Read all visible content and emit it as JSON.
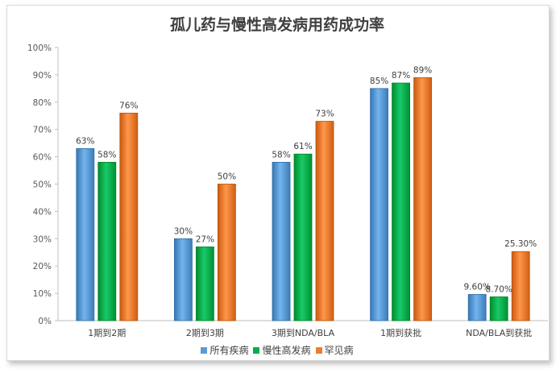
{
  "chart_data": {
    "type": "bar",
    "title": "孤儿药与慢性高发病用药成功率",
    "categories": [
      "1期到2期",
      "2期到3期",
      "3期到NDA/BLA",
      "1期到获批",
      "NDA/BLA到获批"
    ],
    "series": [
      {
        "name": "所有疾病",
        "color": "#5b9bd5",
        "values": [
          63,
          30,
          58,
          85,
          9.6
        ],
        "labels": [
          "63%",
          "30%",
          "58%",
          "85%",
          "9.60%"
        ]
      },
      {
        "name": "慢性高发病",
        "color": "#00b050",
        "values": [
          58,
          27,
          61,
          87,
          8.7
        ],
        "labels": [
          "58%",
          "27%",
          "61%",
          "87%",
          "8.70%"
        ]
      },
      {
        "name": "罕见病",
        "color": "#ed7d31",
        "values": [
          76,
          50,
          73,
          89,
          25.3
        ],
        "labels": [
          "76%",
          "50%",
          "73%",
          "89%",
          "25.30%"
        ]
      }
    ],
    "ylim": [
      0,
      100
    ],
    "ytick_labels": [
      "0%",
      "10%",
      "20%",
      "30%",
      "40%",
      "50%",
      "60%",
      "70%",
      "80%",
      "90%",
      "100%"
    ],
    "xlabel": "",
    "ylabel": "",
    "grid": false,
    "legend_position": "bottom"
  }
}
